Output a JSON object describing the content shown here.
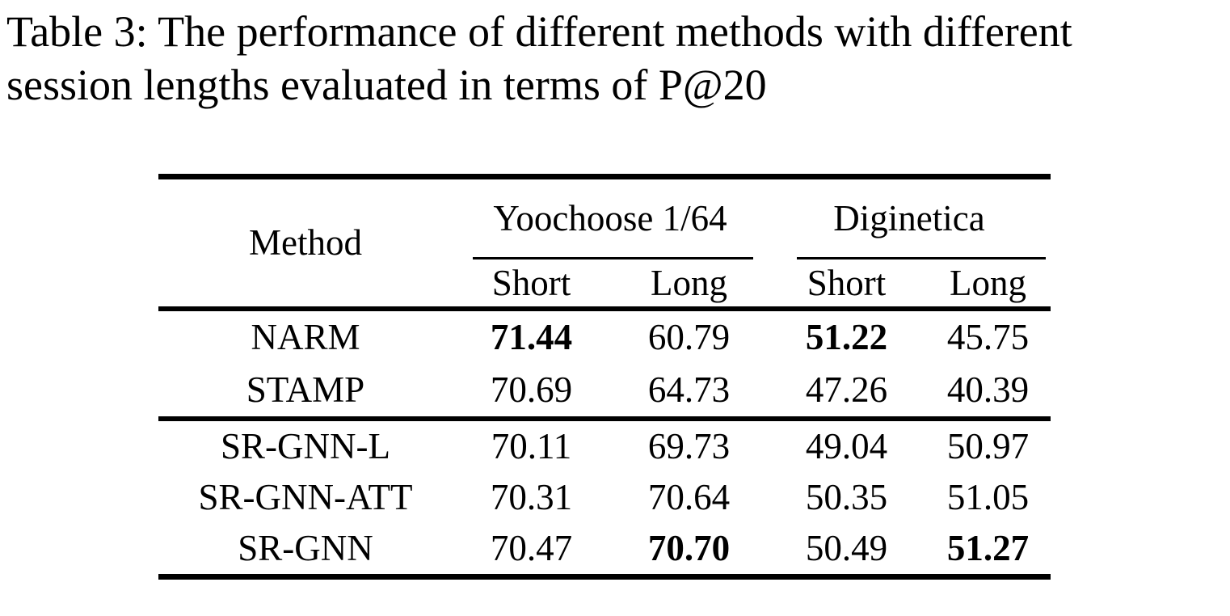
{
  "caption": {
    "line1": "Table 3: The performance of different methods with different",
    "line2": "session lengths evaluated in terms of P@20"
  },
  "table": {
    "method_header": "Method",
    "groups": [
      {
        "label": "Yoochoose 1/64",
        "subcolumns": [
          "Short",
          "Long"
        ]
      },
      {
        "label": "Diginetica",
        "subcolumns": [
          "Short",
          "Long"
        ]
      }
    ],
    "sections": [
      {
        "rows": [
          {
            "method": "NARM",
            "values": [
              {
                "text": "71.44",
                "bold": true
              },
              {
                "text": "60.79",
                "bold": false
              },
              {
                "text": "51.22",
                "bold": true
              },
              {
                "text": "45.75",
                "bold": false
              }
            ]
          },
          {
            "method": "STAMP",
            "values": [
              {
                "text": "70.69",
                "bold": false
              },
              {
                "text": "64.73",
                "bold": false
              },
              {
                "text": "47.26",
                "bold": false
              },
              {
                "text": "40.39",
                "bold": false
              }
            ]
          }
        ]
      },
      {
        "rows": [
          {
            "method": "SR-GNN-L",
            "values": [
              {
                "text": "70.11",
                "bold": false
              },
              {
                "text": "69.73",
                "bold": false
              },
              {
                "text": "49.04",
                "bold": false
              },
              {
                "text": "50.97",
                "bold": false
              }
            ]
          },
          {
            "method": "SR-GNN-ATT",
            "values": [
              {
                "text": "70.31",
                "bold": false
              },
              {
                "text": "70.64",
                "bold": false
              },
              {
                "text": "50.35",
                "bold": false
              },
              {
                "text": "51.05",
                "bold": false
              }
            ]
          },
          {
            "method": "SR-GNN",
            "values": [
              {
                "text": "70.47",
                "bold": false
              },
              {
                "text": "70.70",
                "bold": true
              },
              {
                "text": "50.49",
                "bold": false
              },
              {
                "text": "51.27",
                "bold": true
              }
            ]
          }
        ]
      }
    ]
  }
}
